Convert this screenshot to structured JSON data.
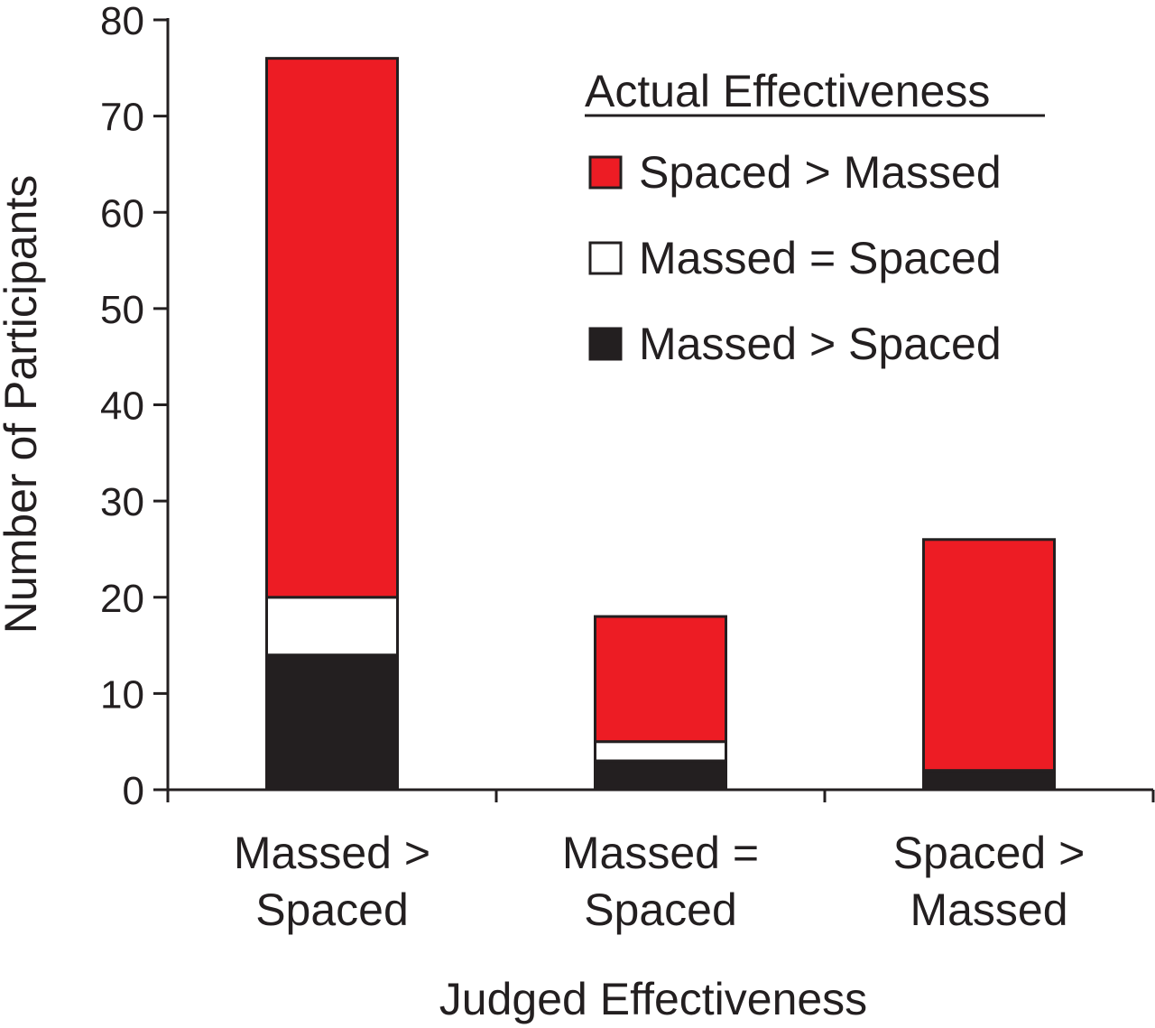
{
  "chart_data": {
    "type": "bar",
    "stacked": true,
    "title": "",
    "xlabel": "Judged Effectiveness",
    "ylabel": "Number of Participants",
    "ylim": [
      0,
      80
    ],
    "yticks": [
      0,
      10,
      20,
      30,
      40,
      50,
      60,
      70,
      80
    ],
    "grid": false,
    "categories": [
      [
        "Massed >",
        "Spaced"
      ],
      [
        "Massed =",
        "Spaced"
      ],
      [
        "Spaced >",
        "Massed"
      ]
    ],
    "series": [
      {
        "name": "Massed > Spaced",
        "color": "#231f20",
        "values": [
          14,
          3,
          2
        ]
      },
      {
        "name": "Massed = Spaced",
        "color": "#ffffff",
        "values": [
          6,
          2,
          0
        ]
      },
      {
        "name": "Spaced > Massed",
        "color": "#ed1c24",
        "values": [
          56,
          13,
          24
        ]
      }
    ],
    "legend": {
      "title": "Actual Effectiveness",
      "position": "top-right",
      "order": [
        "Spaced > Massed",
        "Massed = Spaced",
        "Massed > Spaced"
      ]
    }
  }
}
